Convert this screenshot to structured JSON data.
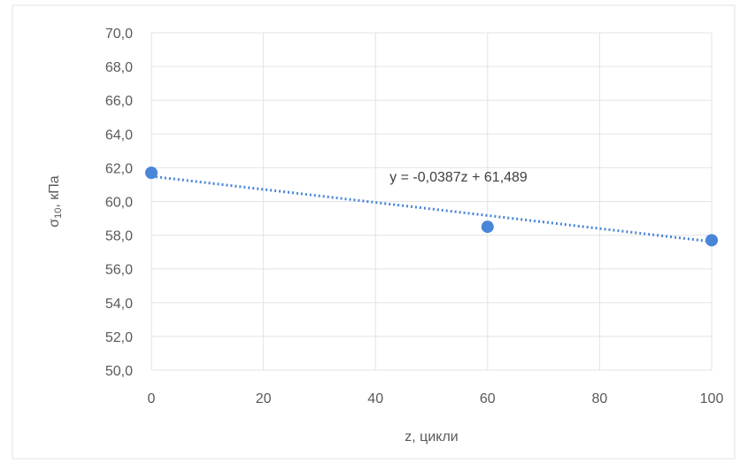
{
  "chart_data": {
    "type": "scatter",
    "xlabel": "z, цикли",
    "ylabel_main": "σ",
    "ylabel_sub": "10",
    "ylabel_rest": ", кПа",
    "xlim": [
      0,
      100
    ],
    "ylim": [
      50,
      70
    ],
    "x_ticks": [
      0,
      20,
      40,
      60,
      80,
      100
    ],
    "y_ticks": [
      "50,0",
      "52,0",
      "54,0",
      "56,0",
      "58,0",
      "60,0",
      "62,0",
      "64,0",
      "66,0",
      "68,0",
      "70,0"
    ],
    "grid": true,
    "series": [
      {
        "points": [
          {
            "x": 0,
            "y": 61.7
          },
          {
            "x": 60,
            "y": 58.5
          },
          {
            "x": 100,
            "y": 57.7
          }
        ],
        "color": "#4a86d8"
      }
    ],
    "trendline": {
      "type": "linear",
      "slope": -0.0387,
      "intercept": 61.489,
      "style": "dotted",
      "color": "#4a86d8",
      "equation": "y = -0,0387z + 61,489"
    }
  }
}
